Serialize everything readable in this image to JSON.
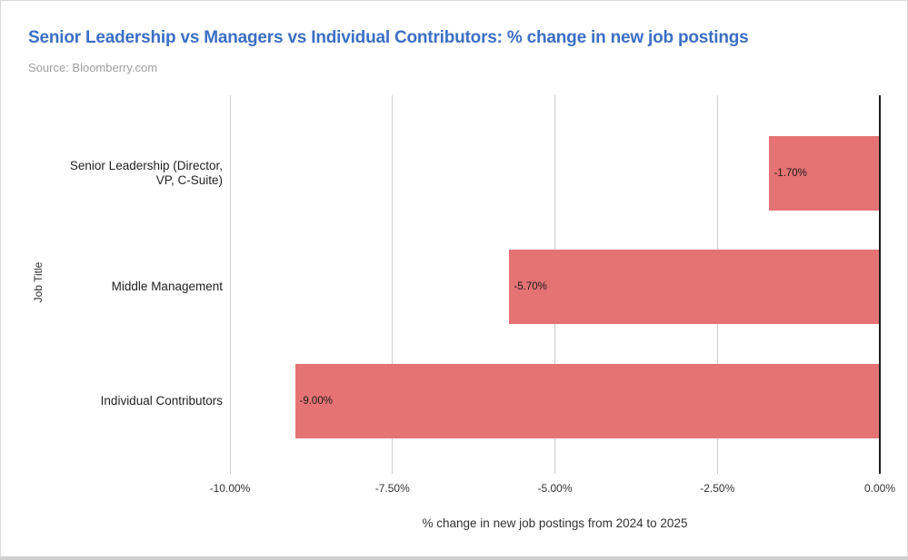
{
  "header": {
    "title": "Senior Leadership vs Managers vs Individual Contributors: % change in new job postings",
    "source": "Source: Bloomberry.com"
  },
  "chart_data": {
    "type": "bar",
    "orientation": "horizontal",
    "title": "Senior Leadership vs Managers vs Individual Contributors: % change in new job postings",
    "subtitle": "Source: Bloomberry.com",
    "categories": [
      "Senior Leadership (Director, VP, C-Suite)",
      "Middle Management",
      "Individual Contributors"
    ],
    "values": [
      -1.7,
      -5.7,
      -9.0
    ],
    "bar_labels": [
      "-1.70%",
      "-5.70%",
      "-9.00%"
    ],
    "xlabel": "% change in new job postings from 2024 to 2025",
    "ylabel": "Job Title",
    "xlim": [
      -10,
      0
    ],
    "x_ticks": [
      -10,
      -7.5,
      -5,
      -2.5,
      0
    ],
    "x_tick_labels": [
      "-10.00%",
      "-7.50%",
      "-5.00%",
      "-2.50%",
      "0.00%"
    ],
    "grid": "vertical",
    "legend": "none"
  },
  "colors": {
    "bar": "#e57373",
    "title": "#3b6fc5",
    "source": "#9e9e9e",
    "gridline": "#cfcfcf",
    "zero_line": "#1f1f1f",
    "text": "#333333"
  }
}
